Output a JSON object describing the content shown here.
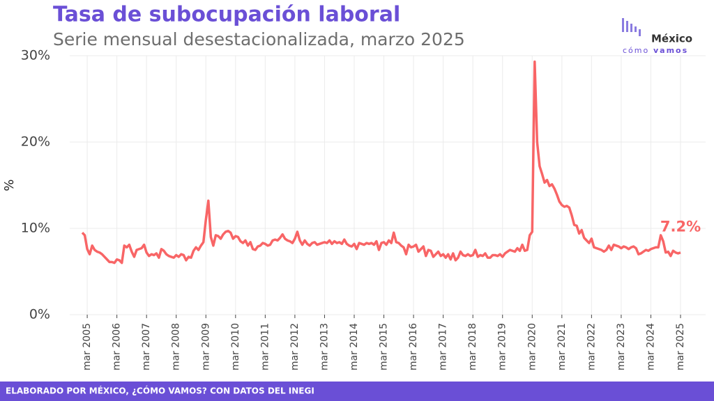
{
  "chart_data": {
    "type": "line",
    "title": "Tasa de subocupación laboral",
    "subtitle": "Serie mensual desestacionalizada, marzo 2025",
    "y_label": "%",
    "annotation": "7.2%",
    "footer": "ELABORADO POR MÉXICO, ¿CÓMO VAMOS? CON DATOS DEL INEGI",
    "logo": {
      "name": "México",
      "word1": "cómo",
      "word2": "vamos"
    },
    "categories": [
      null,
      null,
      "mar 2005",
      null,
      null,
      null,
      null,
      null,
      null,
      null,
      null,
      null,
      null,
      null,
      "mar 2006",
      null,
      null,
      null,
      null,
      null,
      null,
      null,
      null,
      null,
      null,
      null,
      "mar 2007",
      null,
      null,
      null,
      null,
      null,
      null,
      null,
      null,
      null,
      null,
      null,
      "mar 2008",
      null,
      null,
      null,
      null,
      null,
      null,
      null,
      null,
      null,
      null,
      null,
      "mar 2009",
      null,
      null,
      null,
      null,
      null,
      null,
      null,
      null,
      null,
      null,
      null,
      "mar 2010",
      null,
      null,
      null,
      null,
      null,
      null,
      null,
      null,
      null,
      null,
      null,
      "mar 2011",
      null,
      null,
      null,
      null,
      null,
      null,
      null,
      null,
      null,
      null,
      null,
      "mar 2012",
      null,
      null,
      null,
      null,
      null,
      null,
      null,
      null,
      null,
      null,
      null,
      "mar 2013",
      null,
      null,
      null,
      null,
      null,
      null,
      null,
      null,
      null,
      null,
      null,
      "mar 2014",
      null,
      null,
      null,
      null,
      null,
      null,
      null,
      null,
      null,
      null,
      null,
      "mar 2015",
      null,
      null,
      null,
      null,
      null,
      null,
      null,
      null,
      null,
      null,
      null,
      "mar 2016",
      null,
      null,
      null,
      null,
      null,
      null,
      null,
      null,
      null,
      null,
      null,
      "mar 2017",
      null,
      null,
      null,
      null,
      null,
      null,
      null,
      null,
      null,
      null,
      null,
      "mar 2018",
      null,
      null,
      null,
      null,
      null,
      null,
      null,
      null,
      null,
      null,
      null,
      "mar 2019",
      null,
      null,
      null,
      null,
      null,
      null,
      null,
      null,
      null,
      null,
      null,
      "mar 2020",
      null,
      null,
      null,
      null,
      null,
      null,
      null,
      null,
      null,
      null,
      null,
      "mar 2021",
      null,
      null,
      null,
      null,
      null,
      null,
      null,
      null,
      null,
      null,
      null,
      "mar 2022",
      null,
      null,
      null,
      null,
      null,
      null,
      null,
      null,
      null,
      null,
      null,
      "mar 2023",
      null,
      null,
      null,
      null,
      null,
      null,
      null,
      null,
      null,
      null,
      null,
      "mar 2024",
      null,
      null,
      null,
      null,
      null,
      null,
      null,
      null,
      null,
      null,
      null,
      "mar 2025"
    ],
    "series": [
      {
        "name": "Tasa de subocupación",
        "color": "#f86566",
        "values": [
          9.5,
          9.2,
          7.6,
          7.0,
          8.0,
          7.5,
          7.3,
          7.2,
          7.0,
          6.7,
          6.4,
          6.1,
          6.1,
          6.0,
          6.4,
          6.3,
          6.0,
          8.0,
          7.8,
          8.1,
          7.3,
          6.7,
          7.5,
          7.6,
          7.7,
          8.1,
          7.2,
          6.8,
          7.0,
          6.9,
          7.1,
          6.6,
          7.6,
          7.4,
          7.0,
          6.8,
          6.7,
          6.6,
          6.9,
          6.7,
          7.0,
          6.9,
          6.3,
          6.7,
          6.6,
          7.4,
          7.8,
          7.5,
          8.0,
          8.4,
          11.0,
          13.2,
          9.0,
          8.0,
          9.2,
          9.1,
          8.8,
          9.3,
          9.6,
          9.7,
          9.5,
          8.8,
          9.1,
          9.0,
          8.5,
          8.3,
          8.6,
          8.0,
          8.4,
          7.6,
          7.5,
          7.9,
          8.0,
          8.3,
          8.2,
          8.0,
          8.1,
          8.6,
          8.7,
          8.6,
          8.9,
          9.3,
          8.8,
          8.6,
          8.5,
          8.3,
          8.8,
          9.6,
          8.6,
          8.1,
          8.6,
          8.2,
          8.0,
          8.3,
          8.4,
          8.1,
          8.2,
          8.3,
          8.4,
          8.3,
          8.6,
          8.2,
          8.5,
          8.3,
          8.4,
          8.2,
          8.7,
          8.2,
          8.0,
          7.9,
          8.2,
          7.6,
          8.3,
          8.2,
          8.1,
          8.3,
          8.2,
          8.3,
          8.1,
          8.5,
          7.5,
          8.3,
          8.4,
          8.1,
          8.6,
          8.3,
          9.5,
          8.4,
          8.3,
          8.0,
          7.8,
          7.0,
          8.1,
          7.8,
          7.9,
          8.1,
          7.3,
          7.6,
          7.9,
          6.8,
          7.5,
          7.4,
          6.7,
          7.0,
          7.3,
          6.8,
          7.0,
          6.6,
          7.0,
          6.4,
          7.1,
          6.3,
          6.6,
          7.3,
          6.9,
          6.8,
          7.0,
          6.8,
          6.9,
          7.5,
          6.7,
          6.9,
          6.8,
          7.1,
          6.6,
          6.6,
          6.9,
          6.9,
          6.8,
          7.0,
          6.7,
          7.1,
          7.3,
          7.5,
          7.4,
          7.3,
          7.7,
          7.4,
          8.1,
          7.4,
          7.5,
          9.2,
          9.6,
          29.3,
          20.0,
          17.2,
          16.3,
          15.3,
          15.6,
          14.9,
          15.1,
          14.6,
          13.9,
          13.1,
          12.7,
          12.5,
          12.6,
          12.4,
          11.5,
          10.4,
          10.3,
          9.4,
          9.8,
          8.9,
          8.6,
          8.3,
          8.8,
          7.8,
          7.7,
          7.6,
          7.5,
          7.3,
          7.5,
          8.0,
          7.5,
          8.1,
          8.0,
          7.9,
          7.7,
          7.9,
          7.8,
          7.6,
          7.8,
          7.9,
          7.7,
          7.0,
          7.1,
          7.3,
          7.5,
          7.4,
          7.6,
          7.7,
          7.8,
          7.8,
          9.2,
          8.5,
          7.2,
          7.3,
          6.8,
          7.4,
          7.2,
          7.1,
          7.2
        ]
      }
    ],
    "ylim": [
      0,
      30
    ],
    "yticks": [
      {
        "value": 0,
        "label": "0%"
      },
      {
        "value": 10,
        "label": "10%"
      },
      {
        "value": 20,
        "label": "20%"
      },
      {
        "value": 30,
        "label": "30%"
      }
    ],
    "grid": true
  }
}
